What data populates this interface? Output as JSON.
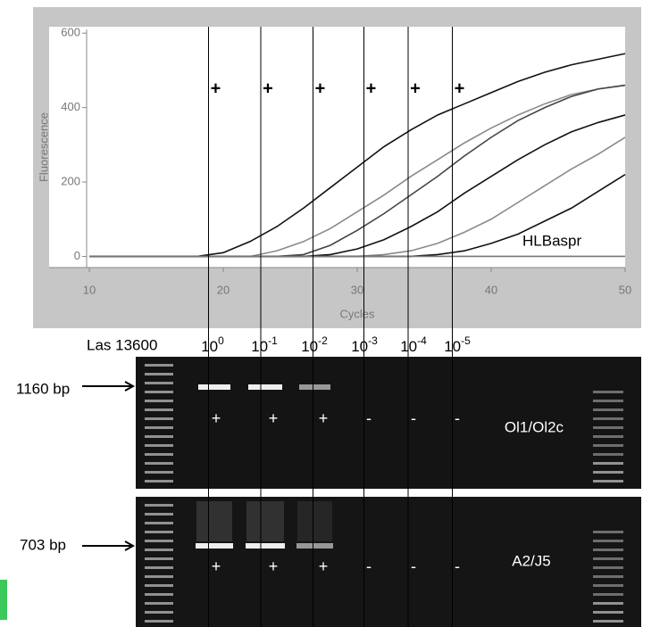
{
  "chart_data": {
    "type": "line",
    "y_label": "Fluorescence",
    "x_label": "Cycles",
    "annotation": "HLBaspr",
    "x": [
      10,
      12,
      14,
      16,
      18,
      20,
      22,
      24,
      26,
      28,
      30,
      32,
      34,
      36,
      38,
      40,
      42,
      44,
      46,
      48,
      50
    ],
    "series": [
      {
        "color": "#111111",
        "values": [
          0,
          0,
          0,
          0,
          0,
          10,
          40,
          80,
          130,
          185,
          240,
          295,
          340,
          380,
          410,
          440,
          470,
          495,
          515,
          530,
          545
        ]
      },
      {
        "color": "#8a8a8a",
        "values": [
          0,
          0,
          0,
          0,
          0,
          0,
          0,
          15,
          40,
          75,
          120,
          165,
          215,
          260,
          305,
          345,
          380,
          410,
          435,
          450,
          460
        ]
      },
      {
        "color": "#444444",
        "values": [
          0,
          0,
          0,
          0,
          0,
          0,
          0,
          0,
          5,
          30,
          70,
          115,
          165,
          215,
          270,
          320,
          365,
          400,
          430,
          450,
          460
        ]
      },
      {
        "color": "#111111",
        "values": [
          0,
          0,
          0,
          0,
          0,
          0,
          0,
          0,
          0,
          5,
          20,
          45,
          80,
          120,
          170,
          215,
          260,
          300,
          335,
          360,
          380
        ]
      },
      {
        "color": "#8a8a8a",
        "values": [
          0,
          0,
          0,
          0,
          0,
          0,
          0,
          0,
          0,
          0,
          0,
          5,
          15,
          35,
          65,
          100,
          145,
          190,
          235,
          275,
          320
        ]
      },
      {
        "color": "#111111",
        "values": [
          0,
          0,
          0,
          0,
          0,
          0,
          0,
          0,
          0,
          0,
          0,
          0,
          0,
          5,
          15,
          35,
          60,
          95,
          130,
          175,
          220
        ]
      },
      {
        "color": "#777777",
        "values": [
          0,
          0,
          0,
          0,
          0,
          0,
          0,
          0,
          0,
          0,
          0,
          0,
          0,
          0,
          0,
          0,
          0,
          0,
          0,
          0,
          0
        ]
      }
    ],
    "ct_lines": [
      18.9,
      22.8,
      26.7,
      30.5,
      33.8,
      37.1
    ],
    "markers": [
      "+",
      "+",
      "+",
      "+",
      "+",
      "+"
    ],
    "xlim": [
      7,
      50
    ],
    "xticks": [
      10,
      20,
      30,
      40,
      50
    ],
    "ylim": [
      -30,
      610
    ],
    "yticks": [
      0,
      200,
      400,
      600
    ]
  },
  "gel": {
    "ladder_label": "Las 13600",
    "dilutions": [
      {
        "base": "10",
        "exp": "0"
      },
      {
        "base": "10",
        "exp": "-1"
      },
      {
        "base": "10",
        "exp": "-2"
      },
      {
        "base": "10",
        "exp": "-3"
      },
      {
        "base": "10",
        "exp": "-4"
      },
      {
        "base": "10",
        "exp": "-5"
      }
    ],
    "panels": [
      {
        "size": "1160 bp",
        "primers": "Ol1/Ol2c",
        "results": [
          "+",
          "+",
          "+",
          "-",
          "-",
          "-"
        ]
      },
      {
        "size": "703 bp",
        "primers": "A2/J5",
        "results": [
          "+",
          "+",
          "+",
          "-",
          "-",
          "-"
        ]
      }
    ]
  }
}
